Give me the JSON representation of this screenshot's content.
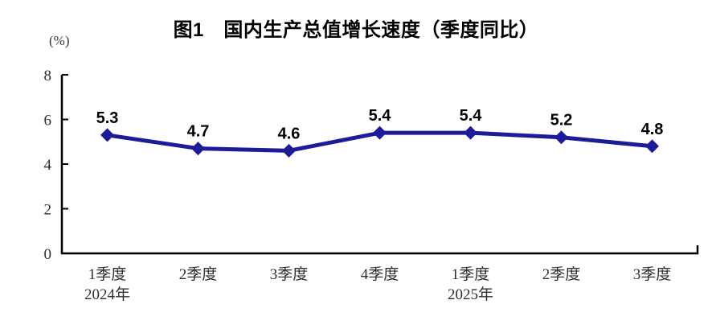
{
  "chart_data": {
    "type": "line",
    "title": "图1　国内生产总值增长速度（季度同比）",
    "unit_label": "(%)",
    "xlabel": "",
    "ylabel": "",
    "categories": [
      "1季度",
      "2季度",
      "3季度",
      "4季度",
      "1季度",
      "2季度",
      "3季度"
    ],
    "category_sublabels": [
      "2024年",
      "",
      "",
      "",
      "2025年",
      "",
      ""
    ],
    "values": [
      5.3,
      4.7,
      4.6,
      5.4,
      5.4,
      5.2,
      4.8
    ],
    "data_labels": [
      "5.3",
      "4.7",
      "4.6",
      "5.4",
      "5.4",
      "5.2",
      "4.8"
    ],
    "ylim": [
      0,
      8
    ],
    "yticks": [
      0,
      2,
      4,
      6,
      8
    ],
    "grid": false,
    "legend": "none",
    "marker": "diamond",
    "line_color": "#1c1c99",
    "axis_color": "#000000",
    "data_label_color": "#000000",
    "tick_label_color": "#2e2e2e"
  }
}
